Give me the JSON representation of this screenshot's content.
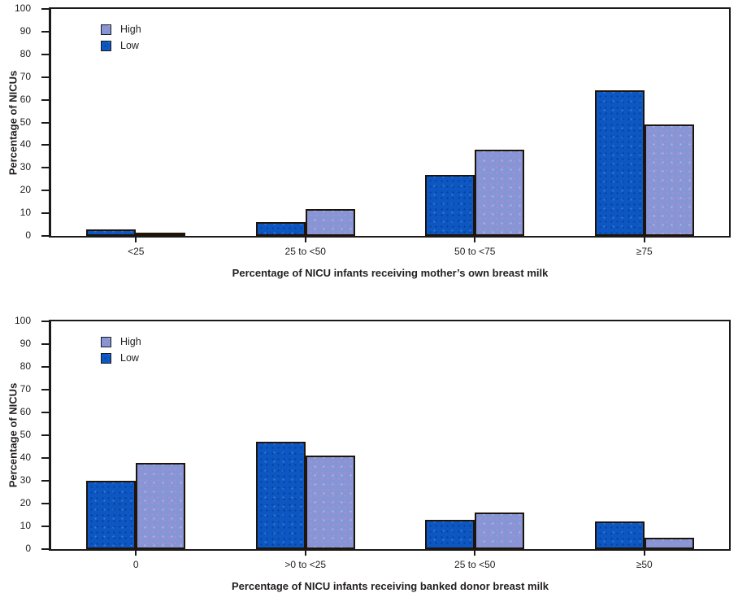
{
  "colors": {
    "low_bar": "#0d57c3",
    "high_bar": "#8595d6",
    "bar_outline": "#201409",
    "axis": "#1a1a1a",
    "text": "#231f20",
    "background": "#ffffff"
  },
  "legend": {
    "entries": [
      {
        "label": "High",
        "series": "High"
      },
      {
        "label": "Low",
        "series": "Low"
      }
    ],
    "position": "top-left-inside"
  },
  "chart_data": [
    {
      "type": "bar",
      "title": "",
      "ylabel": "Percentage of NICUs",
      "xlabel": "Percentage of NICU infants receiving mother’s own breast milk",
      "ylim": [
        0,
        100
      ],
      "ytick_step": 10,
      "yticks": [
        0,
        10,
        20,
        30,
        40,
        50,
        60,
        70,
        80,
        90,
        100
      ],
      "grid": false,
      "legend_position": "top-left-inside",
      "categories": [
        "<25",
        "25 to <50",
        "50 to <75",
        "≥75"
      ],
      "series": [
        {
          "name": "Low",
          "color": "#0d57c3",
          "values": [
            3,
            6,
            27,
            64
          ]
        },
        {
          "name": "High",
          "color": "#8595d6",
          "values": [
            1.5,
            12,
            38,
            49
          ]
        }
      ]
    },
    {
      "type": "bar",
      "title": "",
      "ylabel": "Percentage of NICUs",
      "xlabel": "Percentage of NICU infants receiving banked donor breast milk",
      "ylim": [
        0,
        100
      ],
      "ytick_step": 10,
      "yticks": [
        0,
        10,
        20,
        30,
        40,
        50,
        60,
        70,
        80,
        90,
        100
      ],
      "grid": false,
      "legend_position": "top-left-inside",
      "categories": [
        "0",
        ">0 to <25",
        "25 to <50",
        "≥50"
      ],
      "series": [
        {
          "name": "Low",
          "color": "#0d57c3",
          "values": [
            30,
            47,
            13,
            12
          ]
        },
        {
          "name": "High",
          "color": "#8595d6",
          "values": [
            38,
            41,
            16,
            5
          ]
        }
      ]
    }
  ]
}
